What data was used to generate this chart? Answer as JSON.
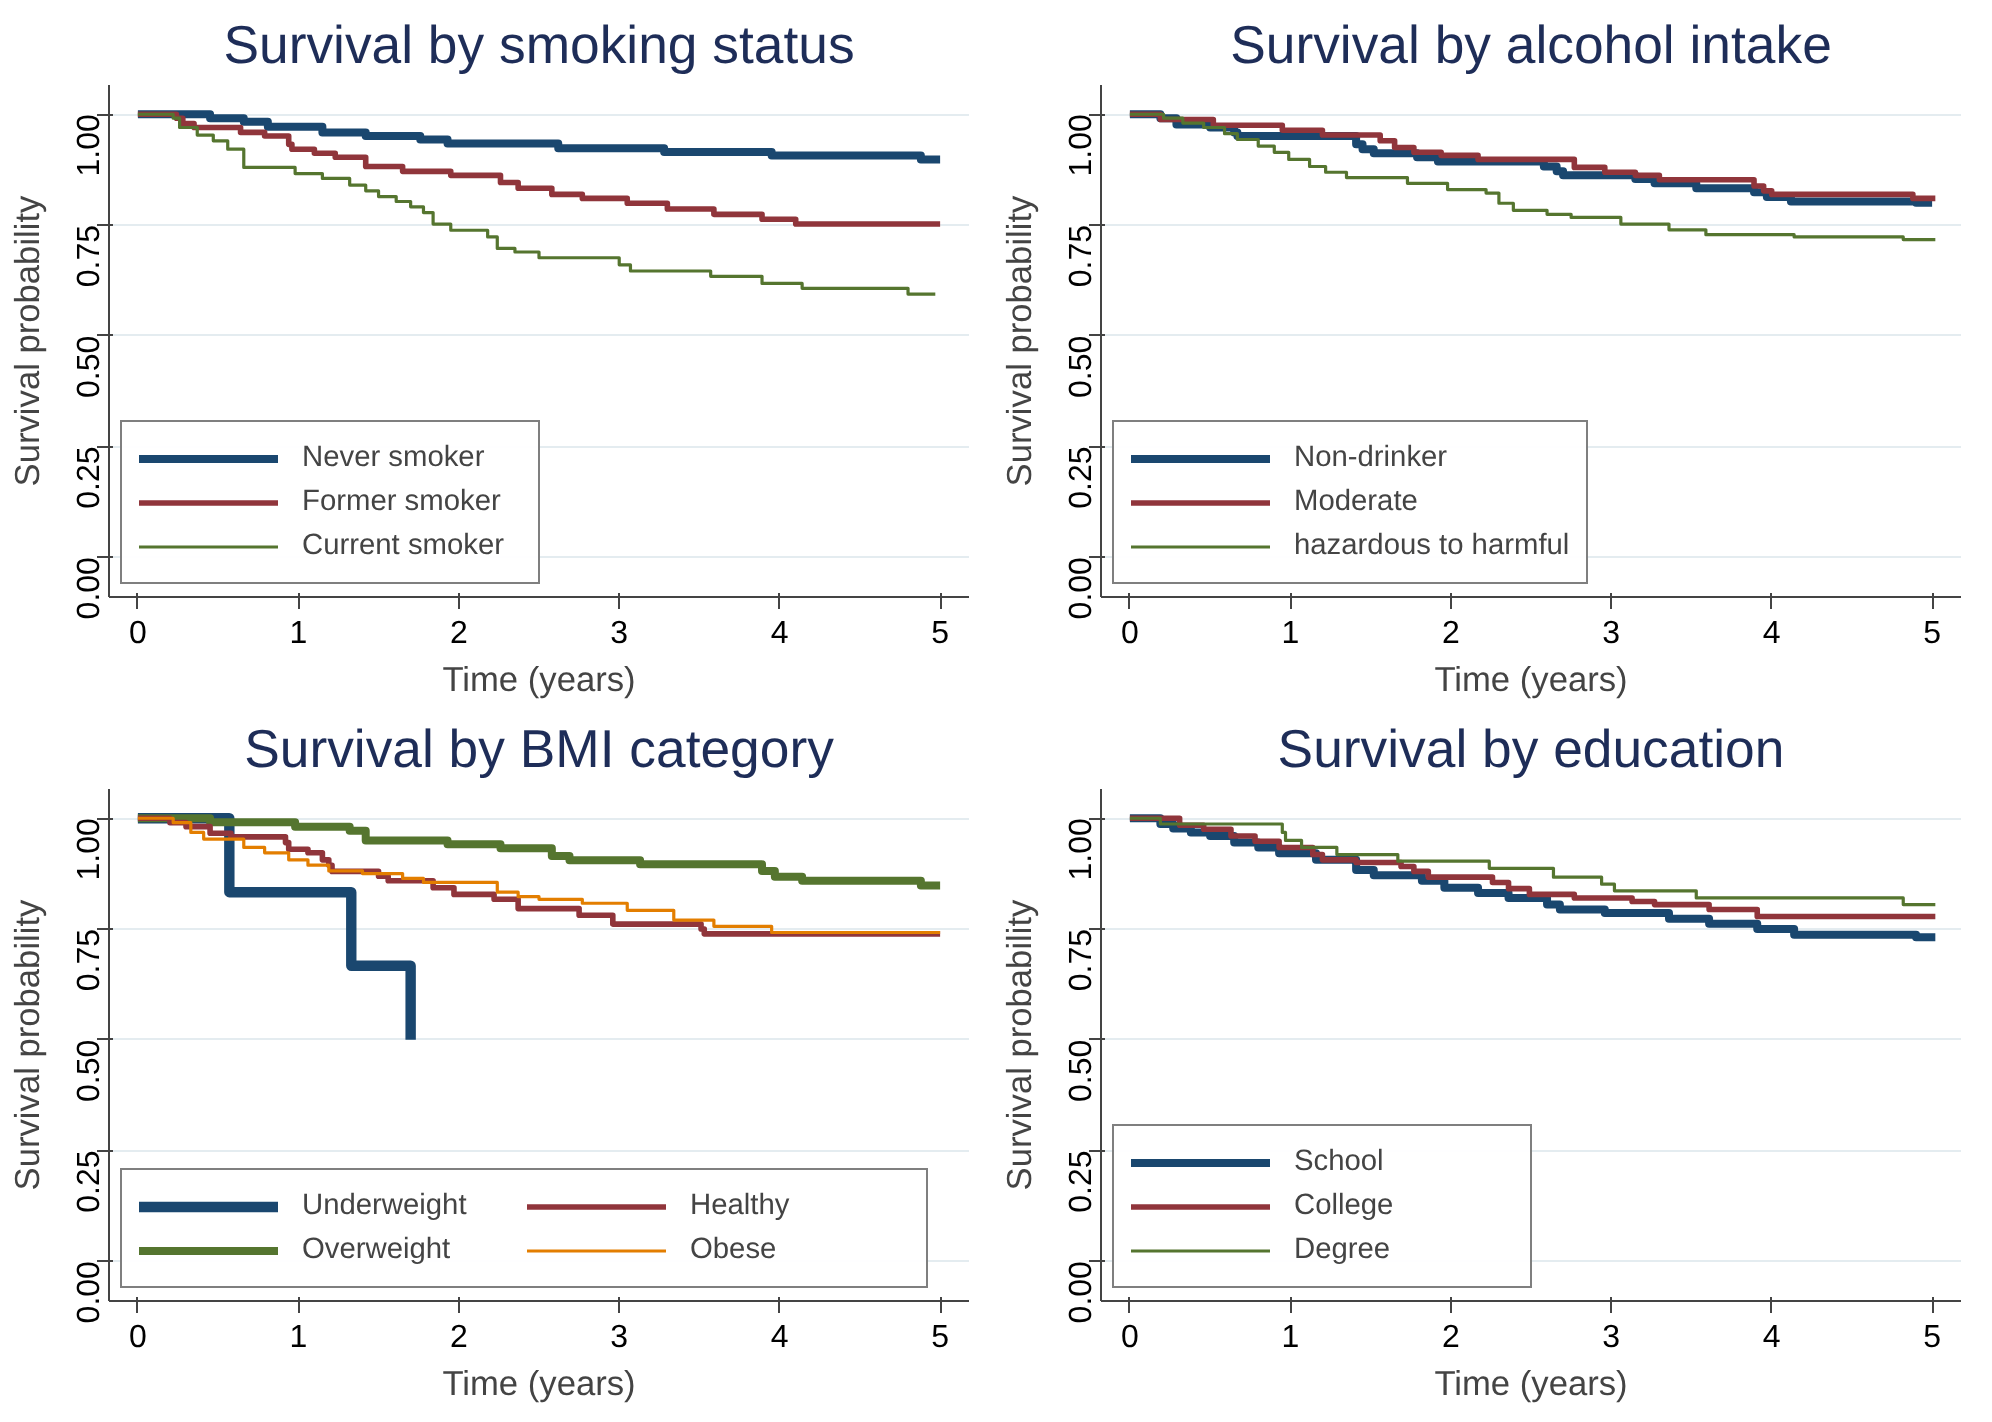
{
  "chart_data": [
    {
      "type": "step",
      "title": "Survival by smoking status",
      "xlabel": "Time (years)",
      "ylabel": "Survival probability",
      "xlim": [
        -0.18,
        5.18
      ],
      "ylim": [
        -0.09,
        1.066
      ],
      "xticks": [
        0,
        1,
        2,
        3,
        4,
        5
      ],
      "yticks": [
        {
          "value": 0,
          "label": "0.00"
        },
        {
          "value": 0.25,
          "label": "0.25"
        },
        {
          "value": 0.5,
          "label": "0.50"
        },
        {
          "value": 0.75,
          "label": "0.75"
        },
        {
          "value": 1,
          "label": "1.00"
        }
      ],
      "grid": "y",
      "legend": "bottom left",
      "series": [
        {
          "name": "Never smoker",
          "color": "#1a476f",
          "x": [
            0,
            0.45,
            0.66,
            0.81,
            1.15,
            1.42,
            1.76,
            1.93,
            2.62,
            3.28,
            3.95,
            4.88,
            5.0
          ],
          "values": [
            1.0,
            0.991,
            0.983,
            0.972,
            0.959,
            0.951,
            0.943,
            0.934,
            0.923,
            0.915,
            0.907,
            0.898,
            0.898
          ]
        },
        {
          "name": "Former smoker",
          "color": "#90353b",
          "x": [
            0,
            0.24,
            0.28,
            0.35,
            0.64,
            0.79,
            0.94,
            0.96,
            1.1,
            1.23,
            1.42,
            1.65,
            1.95,
            2.26,
            2.37,
            2.58,
            2.77,
            3.05,
            3.3,
            3.59,
            3.89,
            4.1,
            5.0
          ],
          "values": [
            1.0,
            0.991,
            0.979,
            0.97,
            0.959,
            0.951,
            0.932,
            0.921,
            0.912,
            0.903,
            0.882,
            0.871,
            0.862,
            0.846,
            0.833,
            0.819,
            0.81,
            0.799,
            0.786,
            0.774,
            0.763,
            0.752,
            0.752
          ]
        },
        {
          "name": "Current smoker",
          "color": "#55752f",
          "x": [
            0,
            0.22,
            0.26,
            0.37,
            0.47,
            0.56,
            0.66,
            0.98,
            1.15,
            1.32,
            1.42,
            1.5,
            1.61,
            1.7,
            1.78,
            1.84,
            1.95,
            2.18,
            2.24,
            2.35,
            2.5,
            3.0,
            3.07,
            3.57,
            3.89,
            4.14,
            4.8,
            4.97
          ],
          "values": [
            1.0,
            0.991,
            0.97,
            0.953,
            0.94,
            0.921,
            0.88,
            0.866,
            0.855,
            0.84,
            0.827,
            0.814,
            0.803,
            0.791,
            0.778,
            0.752,
            0.738,
            0.723,
            0.697,
            0.689,
            0.676,
            0.66,
            0.646,
            0.634,
            0.618,
            0.607,
            0.594,
            0.594
          ]
        }
      ]
    },
    {
      "type": "step",
      "title": "Survival by alcohol intake",
      "xlabel": "Time (years)",
      "ylabel": "Survival probability",
      "xlim": [
        -0.18,
        5.18
      ],
      "ylim": [
        -0.09,
        1.066
      ],
      "xticks": [
        0,
        1,
        2,
        3,
        4,
        5
      ],
      "yticks": [
        {
          "value": 0,
          "label": "0.00"
        },
        {
          "value": 0.25,
          "label": "0.25"
        },
        {
          "value": 0.5,
          "label": "0.50"
        },
        {
          "value": 0.75,
          "label": "0.75"
        },
        {
          "value": 1,
          "label": "1.00"
        }
      ],
      "grid": "y",
      "legend": "bottom left",
      "series": [
        {
          "name": "Non-drinker",
          "color": "#1a476f",
          "x": [
            0,
            0.19,
            0.29,
            0.5,
            0.65,
            0.67,
            1.41,
            1.45,
            1.52,
            1.79,
            1.92,
            2.58,
            2.66,
            2.7,
            3.15,
            3.27,
            3.53,
            3.89,
            3.97,
            4.12,
            4.9,
            5.0
          ],
          "values": [
            1.0,
            0.991,
            0.977,
            0.97,
            0.959,
            0.951,
            0.932,
            0.921,
            0.912,
            0.903,
            0.893,
            0.882,
            0.871,
            0.862,
            0.854,
            0.844,
            0.833,
            0.824,
            0.813,
            0.803,
            0.8,
            0.8
          ]
        },
        {
          "name": "Moderate",
          "color": "#90353b",
          "x": [
            0,
            0.19,
            0.52,
            0.95,
            1.2,
            1.56,
            1.65,
            1.77,
            1.94,
            2.17,
            2.77,
            2.96,
            3.15,
            3.3,
            3.89,
            3.95,
            4.0,
            4.88,
            5.02
          ],
          "values": [
            1.0,
            0.988,
            0.975,
            0.964,
            0.953,
            0.94,
            0.925,
            0.914,
            0.907,
            0.898,
            0.88,
            0.869,
            0.862,
            0.852,
            0.838,
            0.827,
            0.819,
            0.81,
            0.81
          ]
        },
        {
          "name": "hazardous to harmful",
          "color": "#55752f",
          "x": [
            0,
            0.21,
            0.33,
            0.46,
            0.59,
            0.67,
            0.8,
            0.9,
            0.99,
            1.12,
            1.22,
            1.35,
            1.73,
            1.98,
            2.22,
            2.3,
            2.39,
            2.6,
            2.75,
            3.06,
            3.36,
            3.59,
            4.14,
            4.82,
            5.02
          ],
          "values": [
            1.0,
            0.991,
            0.98,
            0.97,
            0.956,
            0.943,
            0.928,
            0.914,
            0.898,
            0.882,
            0.869,
            0.857,
            0.844,
            0.83,
            0.822,
            0.799,
            0.783,
            0.774,
            0.767,
            0.752,
            0.739,
            0.728,
            0.723,
            0.717,
            0.717
          ]
        }
      ]
    },
    {
      "type": "step",
      "title": "Survival by BMI category",
      "xlabel": "Time (years)",
      "ylabel": "Survival probability",
      "xlim": [
        -0.18,
        5.18
      ],
      "ylim": [
        -0.09,
        1.066
      ],
      "xticks": [
        0,
        1,
        2,
        3,
        4,
        5
      ],
      "yticks": [
        {
          "value": 0,
          "label": "0.00"
        },
        {
          "value": 0.25,
          "label": "0.25"
        },
        {
          "value": 0.5,
          "label": "0.50"
        },
        {
          "value": 0.75,
          "label": "0.75"
        },
        {
          "value": 1,
          "label": "1.00"
        }
      ],
      "grid": "y",
      "legend": "bottom left",
      "series": [
        {
          "name": "Underweight",
          "color": "#1a476f",
          "x": [
            0,
            0.57,
            1.33,
            1.7
          ],
          "values": [
            1.0,
            0.833,
            0.667,
            0.5
          ]
        },
        {
          "name": "Overweight",
          "color": "#55752f",
          "x": [
            0,
            0.45,
            0.98,
            1.32,
            1.42,
            1.93,
            2.26,
            2.58,
            2.69,
            3.13,
            3.89,
            3.97,
            4.14,
            4.88,
            5.0
          ],
          "values": [
            1.0,
            0.991,
            0.981,
            0.972,
            0.95,
            0.941,
            0.932,
            0.915,
            0.905,
            0.896,
            0.881,
            0.868,
            0.859,
            0.848,
            0.848
          ]
        },
        {
          "name": "Healthy",
          "color": "#90353b",
          "x": [
            0,
            0.2,
            0.3,
            0.45,
            0.58,
            0.92,
            0.94,
            1.06,
            1.15,
            1.19,
            1.21,
            1.5,
            1.56,
            1.84,
            1.97,
            2.22,
            2.37,
            2.75,
            2.96,
            3.51,
            3.53,
            5.0
          ],
          "values": [
            1.0,
            0.99,
            0.981,
            0.966,
            0.958,
            0.945,
            0.93,
            0.922,
            0.906,
            0.894,
            0.88,
            0.869,
            0.859,
            0.843,
            0.828,
            0.817,
            0.796,
            0.781,
            0.761,
            0.75,
            0.739,
            0.739
          ]
        },
        {
          "name": "Obese",
          "color": "#e37e00",
          "x": [
            0,
            0.22,
            0.33,
            0.41,
            0.66,
            0.79,
            0.94,
            1.06,
            1.19,
            1.4,
            1.65,
            1.78,
            2.24,
            2.37,
            2.5,
            2.77,
            3.05,
            3.34,
            3.59,
            3.95,
            5.0
          ],
          "values": [
            1.0,
            0.99,
            0.968,
            0.953,
            0.934,
            0.922,
            0.906,
            0.894,
            0.881,
            0.875,
            0.864,
            0.855,
            0.833,
            0.823,
            0.817,
            0.808,
            0.792,
            0.77,
            0.756,
            0.742,
            0.742
          ]
        }
      ]
    },
    {
      "type": "step",
      "title": "Survival by education",
      "xlabel": "Time (years)",
      "ylabel": "Survival probability",
      "xlim": [
        -0.18,
        5.18
      ],
      "ylim": [
        -0.09,
        1.066
      ],
      "xticks": [
        0,
        1,
        2,
        3,
        4,
        5
      ],
      "yticks": [
        {
          "value": 0,
          "label": "0.00"
        },
        {
          "value": 0.25,
          "label": "0.25"
        },
        {
          "value": 0.5,
          "label": "0.50"
        },
        {
          "value": 0.75,
          "label": "0.75"
        },
        {
          "value": 1,
          "label": "1.00"
        }
      ],
      "grid": "y",
      "legend": "bottom left",
      "series": [
        {
          "name": "School",
          "color": "#1a476f",
          "x": [
            0,
            0.19,
            0.27,
            0.38,
            0.5,
            0.65,
            0.8,
            0.93,
            1.16,
            1.41,
            1.52,
            1.82,
            1.96,
            2.17,
            2.36,
            2.6,
            2.68,
            2.96,
            3.36,
            3.61,
            3.91,
            4.14,
            4.9,
            5.02
          ],
          "values": [
            1.0,
            0.987,
            0.977,
            0.968,
            0.96,
            0.945,
            0.934,
            0.921,
            0.906,
            0.883,
            0.871,
            0.859,
            0.843,
            0.831,
            0.82,
            0.805,
            0.794,
            0.786,
            0.773,
            0.762,
            0.75,
            0.737,
            0.731,
            0.731
          ]
        },
        {
          "name": "College",
          "color": "#90353b",
          "x": [
            0,
            0.31,
            0.46,
            0.63,
            0.78,
            0.93,
            1.14,
            1.2,
            1.41,
            1.69,
            1.77,
            1.86,
            2.26,
            2.36,
            2.49,
            2.77,
            3.13,
            3.27,
            3.61,
            3.91,
            5.02
          ],
          "values": [
            1.0,
            0.984,
            0.975,
            0.96,
            0.948,
            0.934,
            0.918,
            0.906,
            0.9,
            0.891,
            0.88,
            0.867,
            0.855,
            0.841,
            0.828,
            0.82,
            0.812,
            0.805,
            0.794,
            0.778,
            0.778
          ]
        },
        {
          "name": "Degree",
          "color": "#55752f",
          "x": [
            0,
            0.19,
            0.95,
            0.97,
            1.07,
            1.29,
            1.67,
            2.24,
            2.64,
            2.94,
            3.02,
            3.53,
            4.82,
            5.02
          ],
          "values": [
            1.0,
            0.987,
            0.968,
            0.95,
            0.934,
            0.918,
            0.903,
            0.887,
            0.867,
            0.851,
            0.836,
            0.82,
            0.805,
            0.805
          ]
        }
      ]
    }
  ]
}
